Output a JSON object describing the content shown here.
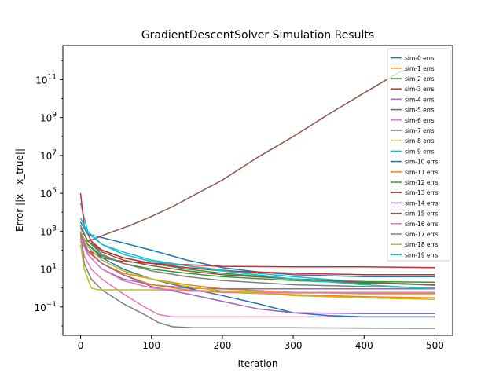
{
  "chart_data": {
    "type": "line",
    "title": "GradientDescentSolver Simulation Results",
    "xlabel": "Iteration",
    "ylabel": "Error ||x - x_true||",
    "xlim": [
      -25,
      525
    ],
    "ylim_log10": [
      -2.5,
      12.8
    ],
    "yscale": "log",
    "x_ticks": [
      0,
      100,
      200,
      300,
      400,
      500
    ],
    "x_tick_labels": [
      "0",
      "100",
      "200",
      "300",
      "400",
      "500"
    ],
    "y_ticks_log10": [
      -1,
      1,
      3,
      5,
      7,
      9,
      11
    ],
    "y_tick_labels": [
      [
        "10",
        "−1"
      ],
      [
        "10",
        "1"
      ],
      [
        "10",
        "3"
      ],
      [
        "10",
        "5"
      ],
      [
        "10",
        "7"
      ],
      [
        "10",
        "9"
      ],
      [
        "10",
        "11"
      ]
    ],
    "legend_position": "upper right",
    "grid": false,
    "series": [
      {
        "name": "sim-0 errs",
        "color": "#1f77b4",
        "points": [
          [
            0,
            3000
          ],
          [
            10,
            700
          ],
          [
            50,
            300
          ],
          [
            100,
            100
          ],
          [
            150,
            30
          ],
          [
            200,
            12
          ],
          [
            250,
            7
          ],
          [
            300,
            5
          ],
          [
            400,
            4
          ],
          [
            500,
            4
          ]
        ]
      },
      {
        "name": "sim-1 errs",
        "color": "#ff7f0e",
        "points": [
          [
            0,
            400
          ],
          [
            10,
            80
          ],
          [
            30,
            20
          ],
          [
            60,
            6
          ],
          [
            100,
            3
          ],
          [
            150,
            1.5
          ],
          [
            200,
            0.9
          ],
          [
            300,
            0.6
          ],
          [
            400,
            0.5
          ],
          [
            500,
            0.5
          ]
        ]
      },
      {
        "name": "sim-2 errs",
        "color": "#2ca02c",
        "points": [
          [
            0,
            2000
          ],
          [
            10,
            300
          ],
          [
            30,
            100
          ],
          [
            60,
            40
          ],
          [
            100,
            20
          ],
          [
            150,
            10
          ],
          [
            200,
            6
          ],
          [
            300,
            3
          ],
          [
            400,
            2.2
          ],
          [
            500,
            2
          ]
        ]
      },
      {
        "name": "sim-3 errs",
        "color": "#d62728",
        "points": [
          [
            0,
            300
          ],
          [
            10,
            100
          ],
          [
            30,
            40
          ],
          [
            60,
            25
          ],
          [
            100,
            20
          ],
          [
            150,
            17
          ],
          [
            200,
            14
          ],
          [
            300,
            13
          ],
          [
            400,
            13
          ],
          [
            500,
            12
          ]
        ]
      },
      {
        "name": "sim-4 errs",
        "color": "#9467bd",
        "points": [
          [
            0,
            1000
          ],
          [
            10,
            60
          ],
          [
            30,
            10
          ],
          [
            60,
            3
          ],
          [
            100,
            1.5
          ],
          [
            150,
            1.0
          ],
          [
            200,
            0.9
          ],
          [
            300,
            0.9
          ],
          [
            400,
            0.9
          ],
          [
            500,
            0.9
          ]
        ]
      },
      {
        "name": "sim-5 errs",
        "color": "#8c564b",
        "points": [
          [
            0,
            300
          ],
          [
            10,
            300
          ],
          [
            20,
            400
          ],
          [
            40,
            800
          ],
          [
            70,
            2000
          ],
          [
            100,
            6000
          ],
          [
            130,
            20000
          ],
          [
            160,
            80000
          ],
          [
            200,
            500000
          ],
          [
            250,
            8000000
          ],
          [
            300,
            100000000
          ],
          [
            350,
            1500000000
          ],
          [
            400,
            20000000000
          ],
          [
            450,
            250000000000
          ],
          [
            470,
            500000000000
          ]
        ]
      },
      {
        "name": "sim-6 errs",
        "color": "#e377c2",
        "points": [
          [
            0,
            500
          ],
          [
            5,
            50
          ],
          [
            15,
            10
          ],
          [
            30,
            3
          ],
          [
            60,
            0.5
          ],
          [
            90,
            0.1
          ],
          [
            110,
            0.04
          ],
          [
            130,
            0.03
          ],
          [
            200,
            0.03
          ],
          [
            300,
            0.03
          ],
          [
            400,
            0.03
          ],
          [
            500,
            0.03
          ]
        ]
      },
      {
        "name": "sim-7 errs",
        "color": "#7f7f7f",
        "points": [
          [
            0,
            800
          ],
          [
            5,
            20
          ],
          [
            15,
            3
          ],
          [
            30,
            0.8
          ],
          [
            60,
            0.15
          ],
          [
            90,
            0.04
          ],
          [
            110,
            0.015
          ],
          [
            130,
            0.009
          ],
          [
            160,
            0.008
          ],
          [
            300,
            0.008
          ],
          [
            500,
            0.0075
          ]
        ]
      },
      {
        "name": "sim-8 errs",
        "color": "#bcbd22",
        "points": [
          [
            0,
            200
          ],
          [
            5,
            10
          ],
          [
            15,
            1
          ],
          [
            25,
            0.8
          ],
          [
            50,
            0.8
          ],
          [
            100,
            0.8
          ],
          [
            200,
            0.7
          ],
          [
            300,
            0.6
          ],
          [
            400,
            0.6
          ],
          [
            500,
            0.6
          ]
        ]
      },
      {
        "name": "sim-9 errs",
        "color": "#17becf",
        "points": [
          [
            0,
            30000
          ],
          [
            10,
            1000
          ],
          [
            30,
            200
          ],
          [
            60,
            60
          ],
          [
            100,
            25
          ],
          [
            150,
            15
          ],
          [
            200,
            9
          ],
          [
            300,
            4
          ],
          [
            400,
            2
          ],
          [
            500,
            1.4
          ]
        ]
      },
      {
        "name": "sim-10 errs",
        "color": "#1f77b4",
        "points": [
          [
            0,
            800
          ],
          [
            10,
            200
          ],
          [
            30,
            40
          ],
          [
            60,
            10
          ],
          [
            100,
            3
          ],
          [
            150,
            1
          ],
          [
            200,
            0.4
          ],
          [
            250,
            0.15
          ],
          [
            300,
            0.05
          ],
          [
            350,
            0.035
          ],
          [
            400,
            0.03
          ],
          [
            500,
            0.03
          ]
        ]
      },
      {
        "name": "sim-11 errs",
        "color": "#ff7f0e",
        "points": [
          [
            0,
            500
          ],
          [
            10,
            100
          ],
          [
            30,
            20
          ],
          [
            60,
            5
          ],
          [
            100,
            1.5
          ],
          [
            150,
            0.8
          ],
          [
            200,
            0.6
          ],
          [
            300,
            0.45
          ],
          [
            400,
            0.35
          ],
          [
            500,
            0.3
          ]
        ]
      },
      {
        "name": "sim-12 errs",
        "color": "#2ca02c",
        "points": [
          [
            0,
            800
          ],
          [
            10,
            200
          ],
          [
            30,
            50
          ],
          [
            60,
            20
          ],
          [
            100,
            10
          ],
          [
            150,
            6
          ],
          [
            200,
            4
          ],
          [
            300,
            2.5
          ],
          [
            400,
            1.8
          ],
          [
            500,
            1.5
          ]
        ]
      },
      {
        "name": "sim-13 errs",
        "color": "#d62728",
        "points": [
          [
            0,
            100000
          ],
          [
            5,
            2000
          ],
          [
            15,
            300
          ],
          [
            30,
            100
          ],
          [
            60,
            40
          ],
          [
            100,
            20
          ],
          [
            150,
            12
          ],
          [
            200,
            8
          ],
          [
            300,
            6
          ],
          [
            400,
            5
          ],
          [
            500,
            5
          ]
        ]
      },
      {
        "name": "sim-14 errs",
        "color": "#9467bd",
        "points": [
          [
            0,
            600
          ],
          [
            10,
            100
          ],
          [
            30,
            20
          ],
          [
            60,
            5
          ],
          [
            100,
            1.2
          ],
          [
            150,
            0.5
          ],
          [
            200,
            0.2
          ],
          [
            250,
            0.08
          ],
          [
            300,
            0.05
          ],
          [
            400,
            0.045
          ],
          [
            500,
            0.045
          ]
        ]
      },
      {
        "name": "sim-15 errs",
        "color": "#8c564b",
        "points": [
          [
            0,
            1500
          ],
          [
            10,
            300
          ],
          [
            30,
            80
          ],
          [
            60,
            30
          ],
          [
            100,
            15
          ],
          [
            150,
            8
          ],
          [
            200,
            5
          ],
          [
            300,
            3
          ],
          [
            400,
            2
          ],
          [
            500,
            1.5
          ]
        ]
      },
      {
        "name": "sim-16 errs",
        "color": "#e377c2",
        "points": [
          [
            0,
            400
          ],
          [
            10,
            60
          ],
          [
            30,
            10
          ],
          [
            60,
            2.5
          ],
          [
            100,
            1
          ],
          [
            150,
            0.7
          ],
          [
            200,
            0.6
          ],
          [
            300,
            0.55
          ],
          [
            400,
            0.55
          ],
          [
            500,
            0.55
          ]
        ]
      },
      {
        "name": "sim-17 errs",
        "color": "#7f7f7f",
        "points": [
          [
            0,
            2000
          ],
          [
            10,
            300
          ],
          [
            30,
            60
          ],
          [
            60,
            20
          ],
          [
            100,
            8
          ],
          [
            150,
            4
          ],
          [
            200,
            2.5
          ],
          [
            300,
            1.5
          ],
          [
            400,
            1.2
          ],
          [
            500,
            1.0
          ]
        ]
      },
      {
        "name": "sim-18 errs",
        "color": "#bcbd22",
        "points": [
          [
            0,
            1000
          ],
          [
            10,
            150
          ],
          [
            30,
            30
          ],
          [
            60,
            8
          ],
          [
            100,
            3
          ],
          [
            150,
            1.2
          ],
          [
            200,
            0.7
          ],
          [
            300,
            0.4
          ],
          [
            400,
            0.3
          ],
          [
            500,
            0.25
          ]
        ]
      },
      {
        "name": "sim-19 errs",
        "color": "#17becf",
        "points": [
          [
            0,
            5000
          ],
          [
            10,
            800
          ],
          [
            30,
            200
          ],
          [
            60,
            80
          ],
          [
            100,
            30
          ],
          [
            150,
            15
          ],
          [
            200,
            8
          ],
          [
            300,
            3
          ],
          [
            400,
            1.5
          ],
          [
            500,
            0.9
          ]
        ]
      }
    ]
  }
}
